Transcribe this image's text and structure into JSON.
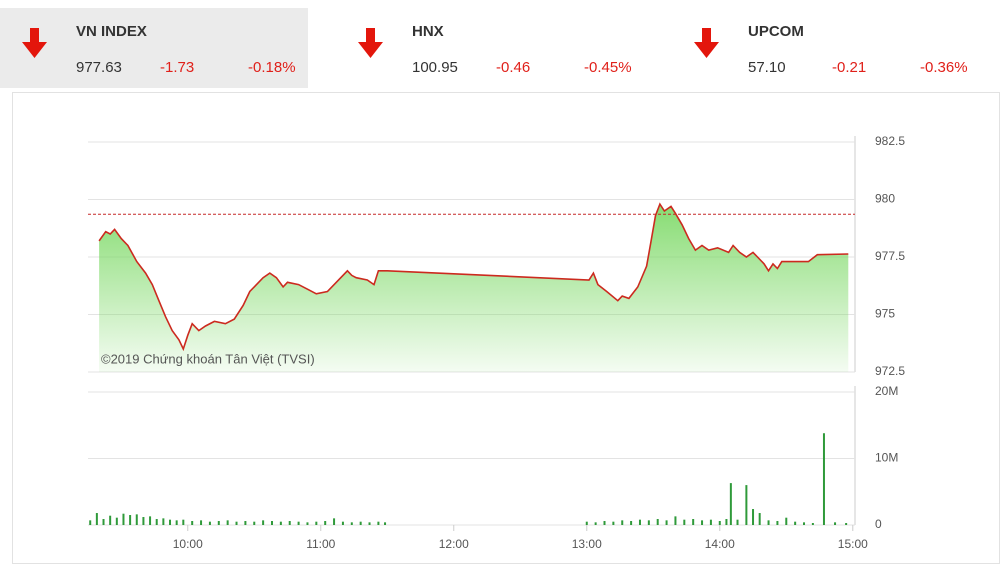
{
  "header": {
    "indices": [
      {
        "name": "VN INDEX",
        "value": "977.63",
        "change": "-1.73",
        "percent": "-0.18%"
      },
      {
        "name": "HNX",
        "value": "100.95",
        "change": "-0.46",
        "percent": "-0.45%"
      },
      {
        "name": "UPCOM",
        "value": "57.10",
        "change": "-0.21",
        "percent": "-0.36%"
      }
    ]
  },
  "chart_data": [
    {
      "type": "line",
      "watermark": "©2019 Chứng khoán Tân Việt (TVSI)",
      "xlim": [
        "9:15",
        "15:01"
      ],
      "ylim": [
        972.5,
        982.5
      ],
      "yticks": [
        982.5,
        980,
        977.5,
        975,
        972.5
      ],
      "grid": true,
      "reference_line": 979.36,
      "reference_color": "#c62828",
      "x": [
        "9:20",
        "9:23",
        "9:25",
        "9:27",
        "9:30",
        "9:33",
        "9:37",
        "9:41",
        "9:44",
        "9:47",
        "9:50",
        "9:53",
        "9:56",
        "9:58",
        "10:00",
        "10:02",
        "10:05",
        "10:08",
        "10:12",
        "10:17",
        "10:21",
        "10:25",
        "10:28",
        "10:31",
        "10:34",
        "10:37",
        "10:40",
        "10:43",
        "10:45",
        "10:50",
        "10:54",
        "10:58",
        "11:03",
        "11:07",
        "11:12",
        "11:14",
        "11:16",
        "11:21",
        "11:24",
        "11:26",
        "11:30",
        "13:01",
        "13:03",
        "13:05",
        "13:09",
        "13:14",
        "13:16",
        "13:19",
        "13:23",
        "13:27",
        "13:29",
        "13:31",
        "13:33",
        "13:35",
        "13:38",
        "13:40",
        "13:43",
        "13:46",
        "13:49",
        "13:52",
        "13:55",
        "13:59",
        "14:04",
        "14:06",
        "14:09",
        "14:12",
        "14:15",
        "14:17",
        "14:20",
        "14:22",
        "14:24",
        "14:26",
        "14:28",
        "14:35",
        "14:40",
        "14:44",
        "14:58"
      ],
      "series": [
        {
          "color": "#cc2a1f",
          "area_color": "#79d862",
          "values": [
            978.2,
            978.6,
            978.5,
            978.7,
            978.3,
            978,
            977.3,
            976.8,
            976.3,
            975.6,
            974.9,
            974.3,
            973.9,
            973.5,
            974.1,
            974.6,
            974.3,
            974.5,
            974.7,
            974.6,
            974.8,
            975.4,
            976,
            976.3,
            976.6,
            976.8,
            976.6,
            976.2,
            976.4,
            976.3,
            976.1,
            975.9,
            976,
            976.4,
            976.9,
            976.7,
            976.6,
            976.5,
            976.3,
            976.9,
            976.9,
            976.5,
            976.8,
            976.3,
            976,
            975.6,
            975.8,
            975.7,
            976.2,
            977.1,
            978.2,
            979.3,
            979.8,
            979.5,
            979.7,
            979.4,
            978.9,
            978.3,
            977.8,
            978,
            977.8,
            977.9,
            977.7,
            978,
            977.7,
            977.5,
            977.7,
            977.5,
            977.2,
            976.9,
            977.2,
            977,
            977.3,
            977.3,
            977.3,
            977.6,
            977.63
          ]
        }
      ]
    },
    {
      "type": "bar",
      "xlim": [
        "9:15",
        "15:01"
      ],
      "ylim": [
        0,
        20000000
      ],
      "yticks": [
        {
          "value": 20000000,
          "label": "20M"
        },
        {
          "value": 10000000,
          "label": "10M"
        },
        0
      ],
      "grid": true,
      "xticks": [
        "10:00",
        "11:00",
        "12:00",
        "13:00",
        "14:00",
        "15:00"
      ],
      "x": [
        "9:16",
        "9:19",
        "9:22",
        "9:25",
        "9:28",
        "9:31",
        "9:34",
        "9:37",
        "9:40",
        "9:43",
        "9:46",
        "9:49",
        "9:52",
        "9:55",
        "9:58",
        "10:02",
        "10:06",
        "10:10",
        "10:14",
        "10:18",
        "10:22",
        "10:26",
        "10:30",
        "10:34",
        "10:38",
        "10:42",
        "10:46",
        "10:50",
        "10:54",
        "10:58",
        "11:02",
        "11:06",
        "11:10",
        "11:14",
        "11:18",
        "11:22",
        "11:26",
        "11:29",
        "13:00",
        "13:04",
        "13:08",
        "13:12",
        "13:16",
        "13:20",
        "13:24",
        "13:28",
        "13:32",
        "13:36",
        "13:40",
        "13:44",
        "13:48",
        "13:52",
        "13:56",
        "14:00",
        "14:03",
        "14:05",
        "14:08",
        "14:12",
        "14:15",
        "14:18",
        "14:22",
        "14:26",
        "14:30",
        "14:34",
        "14:38",
        "14:42",
        "14:47",
        "14:52",
        "14:57"
      ],
      "series": [
        {
          "color": "#2f9a3a",
          "values": [
            700000,
            1800000,
            900000,
            1400000,
            1100000,
            1700000,
            1500000,
            1600000,
            1200000,
            1300000,
            900000,
            1000000,
            800000,
            700000,
            800000,
            600000,
            700000,
            500000,
            600000,
            700000,
            500000,
            600000,
            500000,
            700000,
            600000,
            500000,
            600000,
            500000,
            400000,
            500000,
            600000,
            1000000,
            500000,
            400000,
            500000,
            400000,
            500000,
            400000,
            500000,
            400000,
            600000,
            500000,
            700000,
            600000,
            800000,
            700000,
            900000,
            700000,
            1300000,
            800000,
            900000,
            700000,
            800000,
            600000,
            900000,
            6300000,
            800000,
            6000000,
            2400000,
            1800000,
            700000,
            600000,
            1100000,
            500000,
            400000,
            300000,
            13800000,
            400000,
            300000
          ]
        }
      ]
    }
  ]
}
